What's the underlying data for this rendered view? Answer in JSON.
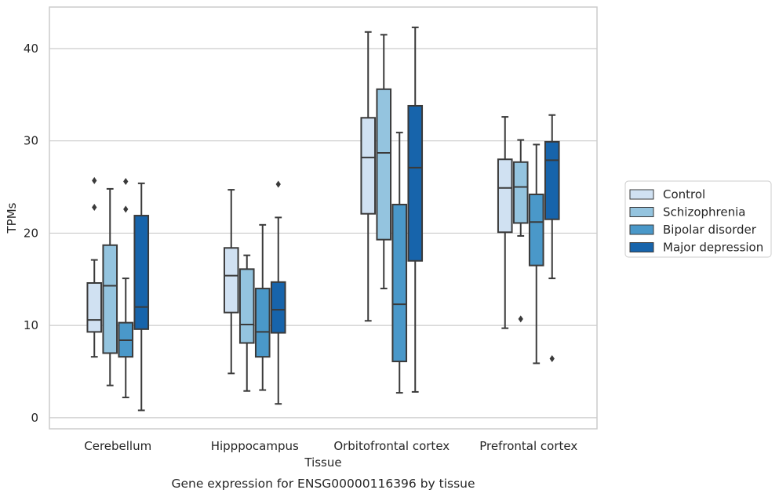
{
  "chart_data": {
    "type": "box",
    "caption": "Gene expression for ENSG00000116396 by tissue",
    "xlabel": "Tissue",
    "ylabel": "TPMs",
    "ylim": [
      -1.2,
      44.5
    ],
    "yticks": [
      0,
      10,
      20,
      30,
      40
    ],
    "grid": true,
    "legend_position": "right",
    "categories": [
      "Cerebellum",
      "Hipppocampus",
      "Orbitofrontal cortex",
      "Prefrontal cortex"
    ],
    "series": [
      {
        "name": "Control",
        "color": "#d0e1f2",
        "boxes": [
          {
            "whisker_low": 6.6,
            "q1": 9.3,
            "median": 10.6,
            "q3": 14.6,
            "whisker_high": 17.1,
            "outliers": [
              22.8,
              25.7
            ]
          },
          {
            "whisker_low": 4.8,
            "q1": 11.4,
            "median": 15.4,
            "q3": 18.4,
            "whisker_high": 24.7,
            "outliers": []
          },
          {
            "whisker_low": 10.5,
            "q1": 22.1,
            "median": 28.2,
            "q3": 32.5,
            "whisker_high": 41.8,
            "outliers": []
          },
          {
            "whisker_low": 9.7,
            "q1": 20.1,
            "median": 24.9,
            "q3": 28.0,
            "whisker_high": 32.6,
            "outliers": []
          }
        ]
      },
      {
        "name": "Schizophrenia",
        "color": "#94c4df",
        "boxes": [
          {
            "whisker_low": 3.5,
            "q1": 7.0,
            "median": 14.3,
            "q3": 18.7,
            "whisker_high": 24.8,
            "outliers": []
          },
          {
            "whisker_low": 2.9,
            "q1": 8.1,
            "median": 10.1,
            "q3": 16.1,
            "whisker_high": 17.6,
            "outliers": []
          },
          {
            "whisker_low": 14.0,
            "q1": 19.3,
            "median": 28.7,
            "q3": 35.6,
            "whisker_high": 41.5,
            "outliers": []
          },
          {
            "whisker_low": 19.7,
            "q1": 21.1,
            "median": 25.0,
            "q3": 27.7,
            "whisker_high": 30.1,
            "outliers": [
              10.7
            ]
          }
        ]
      },
      {
        "name": "Bipolar disorder",
        "color": "#4a98c9",
        "boxes": [
          {
            "whisker_low": 2.2,
            "q1": 6.6,
            "median": 8.4,
            "q3": 10.3,
            "whisker_high": 15.1,
            "outliers": [
              22.6,
              25.6
            ]
          },
          {
            "whisker_low": 3.0,
            "q1": 6.6,
            "median": 9.3,
            "q3": 14.0,
            "whisker_high": 20.9,
            "outliers": []
          },
          {
            "whisker_low": 2.7,
            "q1": 6.1,
            "median": 12.3,
            "q3": 23.1,
            "whisker_high": 30.9,
            "outliers": []
          },
          {
            "whisker_low": 5.9,
            "q1": 16.5,
            "median": 21.2,
            "q3": 24.2,
            "whisker_high": 29.6,
            "outliers": []
          }
        ]
      },
      {
        "name": "Major depression",
        "color": "#1764ab",
        "boxes": [
          {
            "whisker_low": 0.8,
            "q1": 9.6,
            "median": 12.0,
            "q3": 21.9,
            "whisker_high": 25.4,
            "outliers": []
          },
          {
            "whisker_low": 1.5,
            "q1": 9.2,
            "median": 11.7,
            "q3": 14.7,
            "whisker_high": 21.7,
            "outliers": [
              25.3
            ]
          },
          {
            "whisker_low": 2.8,
            "q1": 17.0,
            "median": 27.1,
            "q3": 33.8,
            "whisker_high": 42.3,
            "outliers": []
          },
          {
            "whisker_low": 15.1,
            "q1": 21.5,
            "median": 27.9,
            "q3": 29.9,
            "whisker_high": 32.8,
            "outliers": [
              6.4
            ]
          }
        ]
      }
    ]
  }
}
